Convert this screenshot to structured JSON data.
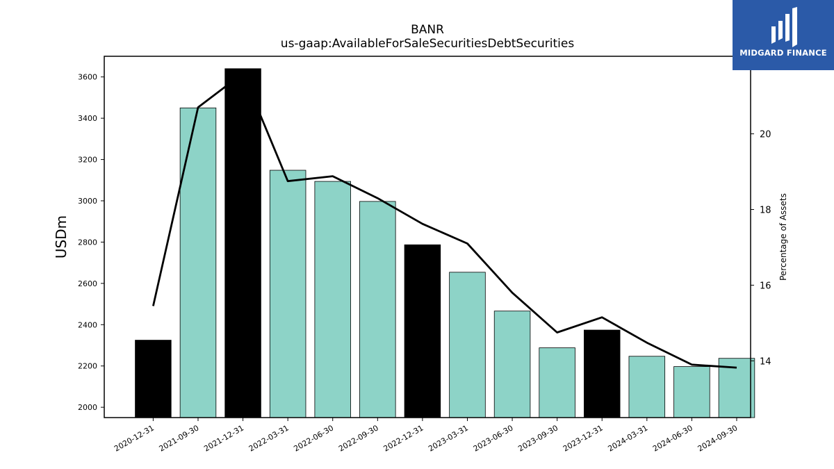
{
  "logo": {
    "text": "MIDGARD FINANCE",
    "color": "#2b5aa8"
  },
  "colors": {
    "bar_normal": "#8dd3c7",
    "bar_highlight": "#000000",
    "line": "#000000"
  },
  "chart_data": {
    "type": "bar",
    "title": "BANR",
    "subtitle": "us-gaap:AvailableForSaleSecuritiesDebtSecurities",
    "ylabel": "USDm",
    "y2label": "Percentage of Assets",
    "categories": [
      "2020-12-31",
      "2021-09-30",
      "2021-12-31",
      "2022-03-31",
      "2022-06-30",
      "2022-09-30",
      "2022-12-31",
      "2023-03-31",
      "2023-06-30",
      "2023-09-30",
      "2023-12-31",
      "2024-03-31",
      "2024-06-30",
      "2024-09-30"
    ],
    "series": [
      {
        "values": [
          2325,
          3450,
          3640,
          3148,
          3094,
          2997,
          2787,
          2654,
          2466,
          2288,
          2374,
          2247,
          2197,
          2237
        ],
        "highlight": [
          true,
          false,
          true,
          false,
          false,
          false,
          true,
          false,
          false,
          false,
          true,
          false,
          false,
          false
        ]
      },
      {
        "axis": "right",
        "type": "line",
        "values": [
          15.45,
          20.7,
          21.6,
          18.75,
          18.88,
          18.3,
          17.62,
          17.1,
          15.8,
          14.75,
          15.15,
          14.48,
          13.9,
          13.82
        ]
      }
    ],
    "ylim": [
      1950,
      3700
    ],
    "y2lim": [
      12.5,
      22.05
    ],
    "yticks": [
      2000,
      2200,
      2400,
      2600,
      2800,
      3000,
      3200,
      3400,
      3600
    ],
    "y2ticks": [
      14,
      16,
      18,
      20
    ]
  }
}
